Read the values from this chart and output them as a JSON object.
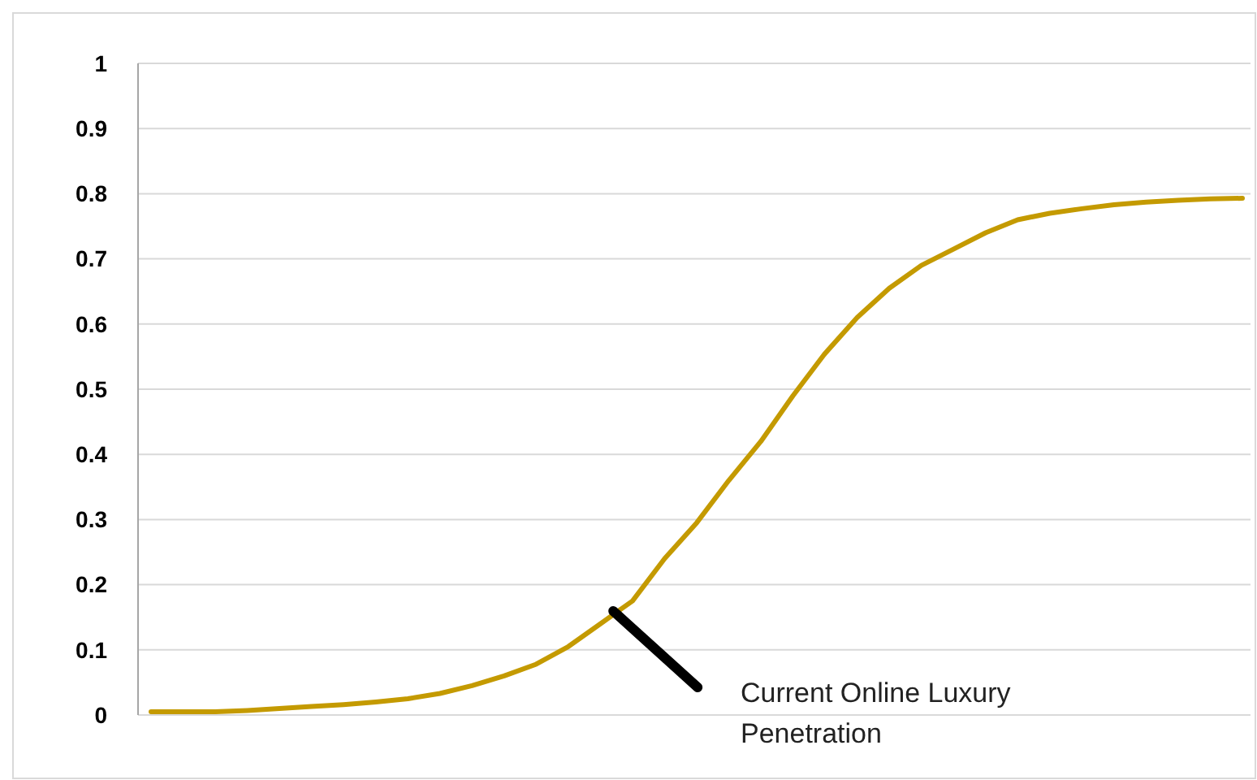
{
  "chart_data": {
    "type": "line",
    "categories": [
      null,
      null,
      null,
      null,
      null,
      null,
      null,
      null,
      null,
      null,
      null,
      null,
      null,
      null,
      null,
      null,
      null,
      null,
      null,
      null,
      null,
      null,
      null,
      null,
      null,
      null,
      null,
      null,
      null,
      null,
      null,
      null,
      null,
      null,
      null
    ],
    "series": [
      {
        "color": "#c49a00",
        "values": [
          0.005,
          0.005,
          0.005,
          0.007,
          0.01,
          0.013,
          0.016,
          0.02,
          0.025,
          0.033,
          0.045,
          0.06,
          0.078,
          0.105,
          0.14,
          0.175,
          0.24,
          0.295,
          0.36,
          0.42,
          0.49,
          0.555,
          0.61,
          0.655,
          0.69,
          0.715,
          0.74,
          0.76,
          0.77,
          0.777,
          0.783,
          0.787,
          0.79,
          0.792,
          0.793
        ]
      }
    ],
    "ylim": [
      0,
      1
    ],
    "yticks": [
      0,
      0.1,
      0.2,
      0.3,
      0.4,
      0.5,
      0.6,
      0.7,
      0.8,
      0.9,
      1
    ],
    "grid": "y",
    "marker": "none",
    "line_style": "solid",
    "annotations": [
      "Current Online Luxury Penetration"
    ]
  }
}
